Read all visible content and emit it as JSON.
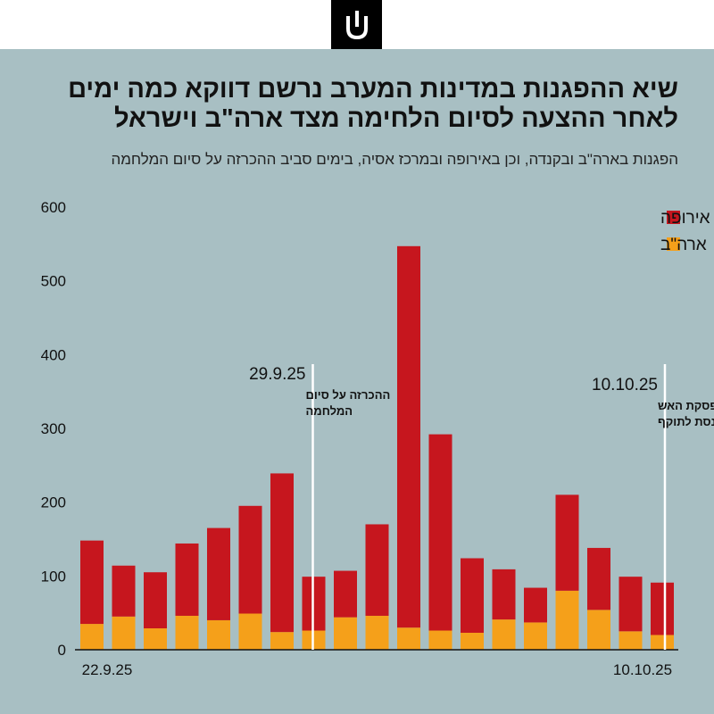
{
  "header": {
    "logo_icon": "haaretz-logo-icon",
    "title_line1": "שיא ההפגנות במדינות המערב נרשם דווקא כמה ימים",
    "title_line2": "לאחר ההצעה לסיום הלחימה מצד ארה\"ב וישראל",
    "subtitle": "הפגנות בארה\"ב ובקנדה, וכן באירופה ובמרכז אסיה, בימים סביב ההכרזה על סיום המלחמה"
  },
  "colors": {
    "background": "#a8bfc3",
    "europe": "#c6161e",
    "usa": "#f5a01a",
    "annotation_line": "#ffffff"
  },
  "chart_data": {
    "type": "bar",
    "stacked": true,
    "x_start_label": "22.9.25",
    "x_end_label": "10.10.25",
    "ylim": [
      0,
      600
    ],
    "yticks": [
      "0",
      "100",
      "200",
      "300",
      "400",
      "500",
      "600"
    ],
    "series": [
      {
        "name": "ארה\"ב",
        "key": "usa",
        "values": [
          35,
          45,
          29,
          46,
          40,
          49,
          24,
          26,
          44,
          46,
          30,
          26,
          23,
          41,
          37,
          80,
          54,
          25,
          20
        ]
      },
      {
        "name": "אירופה",
        "key": "europe",
        "values": [
          113,
          69,
          76,
          98,
          125,
          146,
          215,
          73,
          63,
          124,
          517,
          266,
          101,
          68,
          47,
          130,
          84,
          74,
          71
        ]
      }
    ],
    "legend": [
      {
        "label": "אירופה",
        "key": "europe"
      },
      {
        "label": "ארה\"ב",
        "key": "usa"
      }
    ],
    "annotations": [
      {
        "after_index": 7,
        "date": "29.9.25",
        "line1": "ההכרזה על סיום",
        "line2": "המלחמה"
      },
      {
        "after_index": 18,
        "date": "10.10.25",
        "line1": "הפסקת האש",
        "line2": "נכנסת לתוקף"
      }
    ]
  }
}
